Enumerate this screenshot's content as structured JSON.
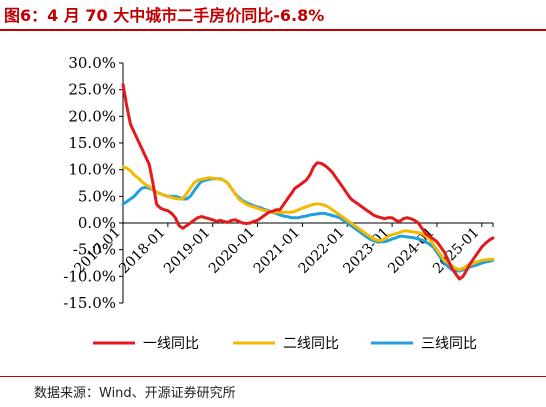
{
  "title": "图6：4 月 70 大中城市二手房价同比-6.8%",
  "source": "数据来源：Wind、开源证券研究所",
  "chart_data": {
    "type": "line",
    "ylim": [
      -15,
      30
    ],
    "yticks": [
      30,
      25,
      20,
      15,
      10,
      5,
      0,
      -5,
      -10,
      -15
    ],
    "ytick_labels": [
      "30.0%",
      "25.0%",
      "20.0%",
      "15.0%",
      "10.0%",
      "5.0%",
      "0.0%",
      "-5.0%",
      "-10.0%",
      "-15.0%"
    ],
    "x_start": "2017-01",
    "x_end": "2025-04",
    "xtick_labels": [
      "2017-01",
      "2018-01",
      "2019-01",
      "2020-01",
      "2021-01",
      "2022-01",
      "2023-01",
      "2024-01",
      "2025-01"
    ],
    "legend_position": "bottom",
    "grid": false,
    "series": [
      {
        "name": "一线同比",
        "color": "#e3191c",
        "values": [
          26.0,
          22.0,
          18.5,
          17.0,
          15.5,
          14.0,
          12.5,
          11.0,
          7.5,
          3.5,
          2.8,
          2.5,
          2.3,
          1.8,
          1.0,
          -0.5,
          -1.0,
          -0.5,
          0.0,
          0.5,
          1.0,
          1.2,
          1.0,
          0.8,
          0.6,
          0.3,
          0.5,
          0.3,
          0.1,
          0.5,
          0.6,
          0.3,
          0.0,
          -0.1,
          0.0,
          0.3,
          0.5,
          1.0,
          1.5,
          2.0,
          2.2,
          2.5,
          2.5,
          3.5,
          4.5,
          5.5,
          6.5,
          7.0,
          7.5,
          8.0,
          9.0,
          10.5,
          11.3,
          11.2,
          10.8,
          10.2,
          9.5,
          8.5,
          7.5,
          6.5,
          5.5,
          4.5,
          4.0,
          3.5,
          3.0,
          2.5,
          2.0,
          1.5,
          1.2,
          1.0,
          0.8,
          1.0,
          1.0,
          0.5,
          0.3,
          0.8,
          1.0,
          0.8,
          0.5,
          0.0,
          -1.0,
          -2.0,
          -2.5,
          -3.0,
          -3.5,
          -4.5,
          -5.5,
          -7.0,
          -8.5,
          -9.5,
          -10.5,
          -10.0,
          -8.8,
          -7.5,
          -6.5,
          -5.5,
          -4.5,
          -3.8,
          -3.2,
          -2.8
        ]
      },
      {
        "name": "二线同比",
        "color": "#f5b800",
        "values": [
          10.5,
          10.3,
          9.8,
          9.0,
          8.5,
          7.8,
          7.2,
          6.8,
          6.3,
          5.8,
          5.5,
          5.2,
          5.0,
          4.8,
          4.6,
          4.5,
          4.6,
          5.5,
          6.5,
          7.5,
          8.0,
          8.2,
          8.3,
          8.5,
          8.4,
          8.3,
          8.2,
          8.0,
          7.5,
          6.5,
          5.5,
          4.5,
          4.0,
          3.5,
          3.2,
          3.0,
          2.8,
          2.5,
          2.3,
          2.2,
          2.0,
          2.0,
          2.0,
          2.0,
          2.0,
          2.0,
          2.2,
          2.5,
          2.8,
          3.0,
          3.3,
          3.5,
          3.6,
          3.5,
          3.3,
          3.0,
          2.5,
          2.0,
          1.5,
          1.0,
          0.5,
          0.0,
          -0.5,
          -1.0,
          -1.5,
          -2.0,
          -2.5,
          -3.0,
          -3.2,
          -3.3,
          -3.0,
          -2.5,
          -2.2,
          -2.0,
          -1.8,
          -1.5,
          -1.5,
          -1.6,
          -1.7,
          -1.8,
          -2.0,
          -2.5,
          -3.0,
          -4.0,
          -5.0,
          -6.0,
          -7.0,
          -7.5,
          -8.0,
          -8.5,
          -8.8,
          -8.5,
          -8.0,
          -7.8,
          -7.5,
          -7.2,
          -7.0,
          -6.9,
          -6.8,
          -6.8
        ]
      },
      {
        "name": "三线同比",
        "color": "#1fa2dc",
        "values": [
          3.5,
          4.0,
          4.5,
          5.0,
          5.8,
          6.5,
          6.7,
          6.5,
          6.2,
          5.8,
          5.5,
          5.2,
          5.0,
          5.0,
          5.0,
          4.8,
          4.5,
          4.5,
          5.0,
          6.0,
          7.0,
          7.8,
          8.0,
          8.2,
          8.3,
          8.3,
          8.3,
          8.0,
          7.5,
          6.5,
          5.5,
          4.8,
          4.2,
          3.8,
          3.5,
          3.2,
          3.0,
          2.8,
          2.5,
          2.3,
          2.0,
          1.8,
          1.5,
          1.3,
          1.2,
          1.0,
          1.0,
          1.0,
          1.2,
          1.3,
          1.5,
          1.6,
          1.7,
          1.8,
          1.8,
          1.6,
          1.4,
          1.2,
          1.0,
          0.5,
          0.0,
          -0.5,
          -1.0,
          -1.5,
          -2.0,
          -2.5,
          -3.0,
          -3.3,
          -3.5,
          -3.5,
          -3.5,
          -3.3,
          -3.0,
          -2.8,
          -2.5,
          -2.5,
          -2.6,
          -2.7,
          -2.8,
          -3.0,
          -3.2,
          -3.5,
          -4.0,
          -4.5,
          -5.5,
          -6.5,
          -7.5,
          -8.2,
          -8.8,
          -9.0,
          -9.0,
          -8.8,
          -8.5,
          -8.2,
          -8.0,
          -7.8,
          -7.5,
          -7.3,
          -7.2,
          -7.0
        ]
      }
    ]
  }
}
